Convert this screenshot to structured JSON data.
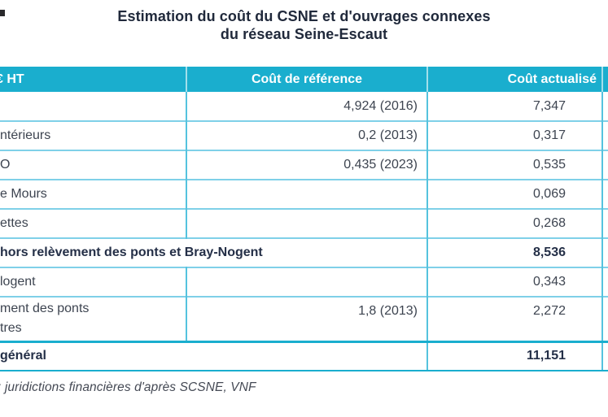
{
  "chart_data": {
    "type": "table",
    "title_line1": "Estimation du coût du CSNE et d'ouvrages connexes",
    "title_line2": "du réseau Seine-Escaut",
    "columns": {
      "label": "€ HT",
      "reference": "Coût de référence",
      "current": "Coût actualisé"
    },
    "rows": [
      {
        "label": "",
        "reference": "4,924 (2016)",
        "current": "7,347",
        "style": "normal"
      },
      {
        "label": "ntérieurs",
        "reference": "0,2 (2013)",
        "current": "0,317",
        "style": "normal"
      },
      {
        "label": "O",
        "reference": "0,435 (2023)",
        "current": "0,535",
        "style": "normal"
      },
      {
        "label": "e Mours",
        "reference": "",
        "current": "0,069",
        "style": "normal"
      },
      {
        "label": "ettes",
        "reference": "",
        "current": "0,268",
        "style": "normal"
      },
      {
        "label": "hors relèvement des ponts et Bray-Nogent",
        "reference": "",
        "current": "8,536",
        "style": "subtotal"
      },
      {
        "label": "logent",
        "reference": "",
        "current": "0,343",
        "style": "normal"
      },
      {
        "label": "ment des ponts",
        "label_line2": "tres",
        "reference": "1,8 (2013)",
        "current": "2,272",
        "style": "normal"
      },
      {
        "label": "général",
        "reference": "",
        "current": "11,151",
        "style": "total"
      }
    ],
    "source": ": juridictions financières d'après SCSNE, VNF",
    "layout": {
      "grid": "on",
      "header_position": "top",
      "values_alignment": "right"
    }
  },
  "colors": {
    "header_bg": "#1aaece",
    "header_text": "#ffffff",
    "row_divider": "#7fd0e8",
    "column_divider": "#55c3de",
    "section_divider": "#1aaece",
    "title_text": "#20293b",
    "body_text": "#3d4450",
    "emphasis_text": "#242f47",
    "source_text": "#454a55"
  }
}
